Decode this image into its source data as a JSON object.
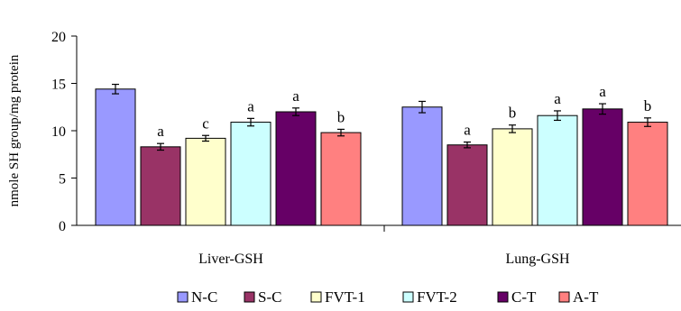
{
  "chart_data": {
    "type": "bar",
    "title": "",
    "xlabel": "",
    "ylabel": "nmole SH group/mg protein",
    "ylim": [
      0,
      20
    ],
    "yticks": [
      0,
      5,
      10,
      15,
      20
    ],
    "categories": [
      "Liver-GSH",
      "Lung-GSH"
    ],
    "series": [
      {
        "name": "N-C",
        "color": "#9999ff",
        "values": [
          14.4,
          12.5
        ],
        "errors": [
          0.5,
          0.6
        ],
        "sig": [
          "",
          ""
        ]
      },
      {
        "name": "S-C",
        "color": "#993366",
        "values": [
          8.3,
          8.5
        ],
        "errors": [
          0.35,
          0.3
        ],
        "sig": [
          "a",
          "a"
        ]
      },
      {
        "name": "FVT-1",
        "color": "#ffffcc",
        "values": [
          9.2,
          10.2
        ],
        "errors": [
          0.3,
          0.4
        ],
        "sig": [
          "c",
          "b"
        ]
      },
      {
        "name": "FVT-2",
        "color": "#ccffff",
        "values": [
          10.9,
          11.6
        ],
        "errors": [
          0.4,
          0.5
        ],
        "sig": [
          "a",
          "a"
        ]
      },
      {
        "name": "C-T",
        "color": "#660066",
        "values": [
          12.0,
          12.3
        ],
        "errors": [
          0.4,
          0.55
        ],
        "sig": [
          "a",
          "a"
        ]
      },
      {
        "name": "A-T",
        "color": "#ff8080",
        "values": [
          9.8,
          10.9
        ],
        "errors": [
          0.35,
          0.45
        ],
        "sig": [
          "b",
          "b"
        ]
      }
    ]
  }
}
